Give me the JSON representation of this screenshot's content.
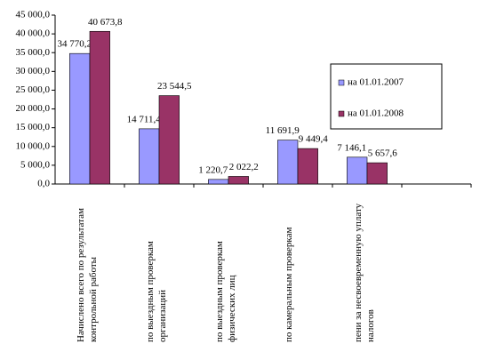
{
  "chart_data": {
    "type": "bar",
    "categories": [
      "Начислено всего по результатам контрольной работы",
      "по выездным проверкам организаций",
      "по выездным проверкам физических лиц",
      "по камеральным проверкам",
      "пени за несвоевременную уплату налогов",
      null
    ],
    "series": [
      {
        "name": "на 01.01.2007",
        "color": "#9999ff",
        "values": [
          34770.2,
          14711.4,
          1220.7,
          11691.9,
          7146.1,
          null
        ],
        "value_labels": [
          "34 770,2",
          "14 711,4",
          "1 220,7",
          "11 691,9",
          "7 146,1",
          null
        ]
      },
      {
        "name": "на 01.01.2008",
        "color": "#993366",
        "values": [
          40673.8,
          23544.5,
          2022.2,
          9449.4,
          5657.6,
          null
        ],
        "value_labels": [
          "40 673,8",
          "23 544,5",
          "2 022,2",
          "9 449,4",
          "5 657,6",
          null
        ]
      }
    ],
    "ylim": [
      0,
      45000
    ],
    "yticks": [
      {
        "value": 0,
        "label": "0,0"
      },
      {
        "value": 5000,
        "label": "5 000,0"
      },
      {
        "value": 10000,
        "label": "10 000,0"
      },
      {
        "value": 15000,
        "label": "15 000,0"
      },
      {
        "value": 20000,
        "label": "20 000,0"
      },
      {
        "value": 25000,
        "label": "25 000,0"
      },
      {
        "value": 30000,
        "label": "30 000,0"
      },
      {
        "value": 35000,
        "label": "35 000,0"
      },
      {
        "value": 40000,
        "label": "40 000,0"
      },
      {
        "value": 45000,
        "label": "45 000,0"
      }
    ],
    "grid": false,
    "legend": "right"
  }
}
